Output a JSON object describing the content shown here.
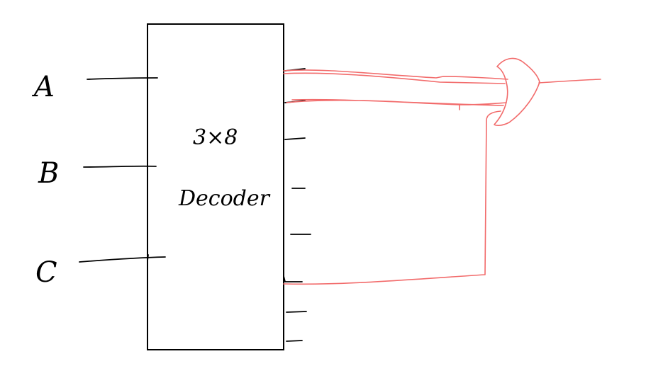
{
  "diagram": {
    "inputs": [
      {
        "label": "A"
      },
      {
        "label": "B"
      },
      {
        "label": "C"
      }
    ],
    "decoder": {
      "size_label": "3×8",
      "name": "Decoder",
      "output_count": 8
    },
    "colors": {
      "ink": "#000000",
      "wire": "#f26b6b",
      "background": "#ffffff"
    }
  }
}
